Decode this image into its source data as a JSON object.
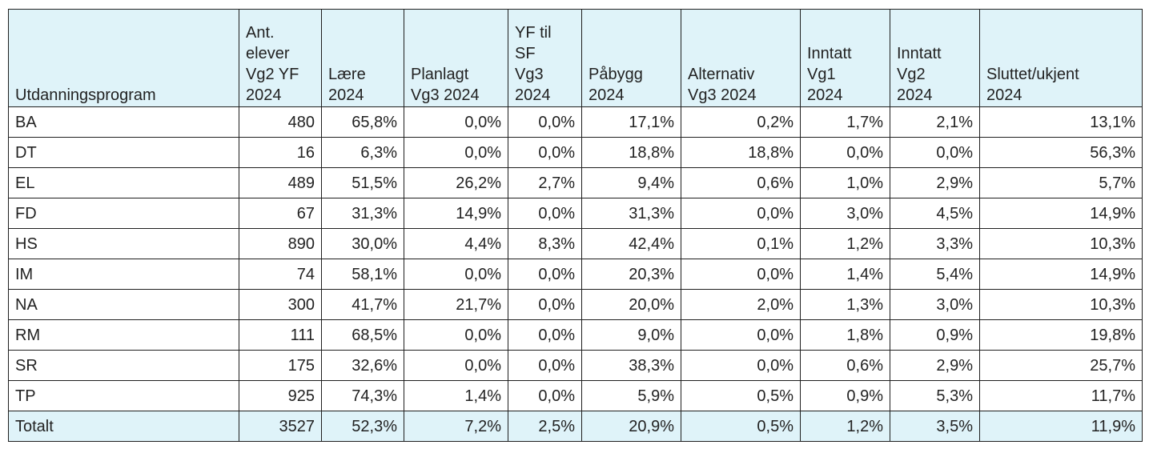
{
  "table": {
    "headers": [
      "Utdanningsprogram",
      "Ant.\nelever\nVg2 YF\n2024",
      "Lære\n2024",
      "Planlagt\nVg3 2024",
      "YF til\nSF\nVg3\n2024",
      "Påbygg\n2024",
      "Alternativ\nVg3 2024",
      "Inntatt\nVg1\n2024",
      "Inntatt\nVg2\n2024",
      "Sluttet/ukjent\n2024"
    ],
    "rows": [
      [
        "BA",
        "480",
        "65,8%",
        "0,0%",
        "0,0%",
        "17,1%",
        "0,2%",
        "1,7%",
        "2,1%",
        "13,1%"
      ],
      [
        "DT",
        "16",
        "6,3%",
        "0,0%",
        "0,0%",
        "18,8%",
        "18,8%",
        "0,0%",
        "0,0%",
        "56,3%"
      ],
      [
        "EL",
        "489",
        "51,5%",
        "26,2%",
        "2,7%",
        "9,4%",
        "0,6%",
        "1,0%",
        "2,9%",
        "5,7%"
      ],
      [
        "FD",
        "67",
        "31,3%",
        "14,9%",
        "0,0%",
        "31,3%",
        "0,0%",
        "3,0%",
        "4,5%",
        "14,9%"
      ],
      [
        "HS",
        "890",
        "30,0%",
        "4,4%",
        "8,3%",
        "42,4%",
        "0,1%",
        "1,2%",
        "3,3%",
        "10,3%"
      ],
      [
        "IM",
        "74",
        "58,1%",
        "0,0%",
        "0,0%",
        "20,3%",
        "0,0%",
        "1,4%",
        "5,4%",
        "14,9%"
      ],
      [
        "NA",
        "300",
        "41,7%",
        "21,7%",
        "0,0%",
        "20,0%",
        "2,0%",
        "1,3%",
        "3,0%",
        "10,3%"
      ],
      [
        "RM",
        "111",
        "68,5%",
        "0,0%",
        "0,0%",
        "9,0%",
        "0,0%",
        "1,8%",
        "0,9%",
        "19,8%"
      ],
      [
        "SR",
        "175",
        "32,6%",
        "0,0%",
        "0,0%",
        "38,3%",
        "0,0%",
        "0,6%",
        "2,9%",
        "25,7%"
      ],
      [
        "TP",
        "925",
        "74,3%",
        "1,4%",
        "0,0%",
        "5,9%",
        "0,5%",
        "0,9%",
        "5,3%",
        "11,7%"
      ]
    ],
    "total": [
      "Totalt",
      "3527",
      "52,3%",
      "7,2%",
      "2,5%",
      "20,9%",
      "0,5%",
      "1,2%",
      "3,5%",
      "11,9%"
    ]
  },
  "colors": {
    "header_background": "#dff3f9",
    "total_background": "#dff3f9",
    "border": "#1f1f1f"
  }
}
